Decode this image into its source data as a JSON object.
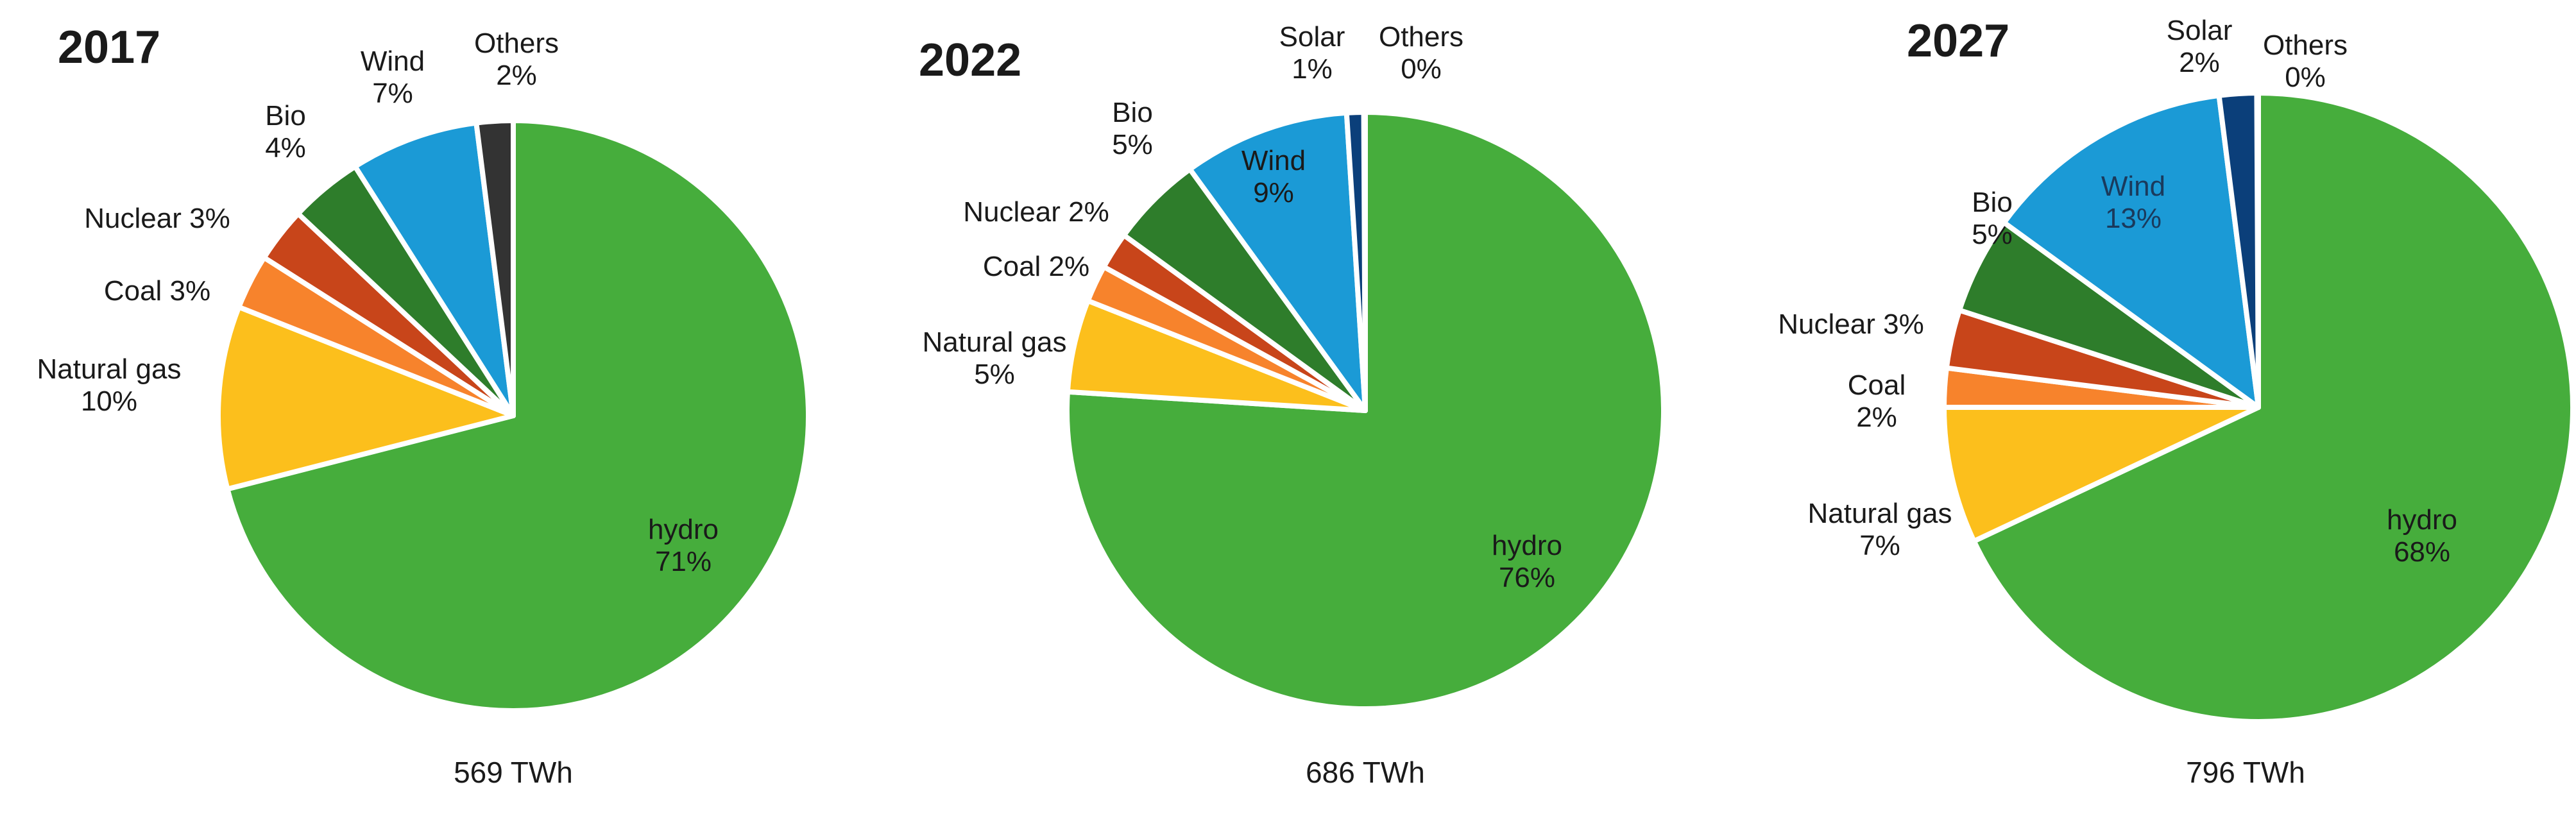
{
  "chart_data": [
    {
      "type": "pie",
      "title": "2017",
      "total_label": "569 TWh",
      "slices": [
        {
          "name": "hydro",
          "value": 71,
          "label": [
            "hydro",
            "71%"
          ],
          "color": "#46ad3c"
        },
        {
          "name": "Natural gas",
          "value": 10,
          "label": [
            "Natural gas",
            "10%"
          ],
          "color": "#fcbf1c"
        },
        {
          "name": "Coal",
          "value": 3,
          "label": [
            "Coal 3%"
          ],
          "color": "#f7832c"
        },
        {
          "name": "Nuclear",
          "value": 3,
          "label": [
            "Nuclear 3%"
          ],
          "color": "#c8451a"
        },
        {
          "name": "Bio",
          "value": 4,
          "label": [
            "Bio",
            "4%"
          ],
          "color": "#2e7d2b"
        },
        {
          "name": "Wind",
          "value": 7,
          "label": [
            "Wind",
            "7%"
          ],
          "color": "#1b9ad6"
        },
        {
          "name": "Others",
          "value": 2,
          "label": [
            "Others",
            "2%"
          ],
          "color": "#333333"
        }
      ]
    },
    {
      "type": "pie",
      "title": "2022",
      "total_label": "686 TWh",
      "slices": [
        {
          "name": "hydro",
          "value": 76,
          "label": [
            "hydro",
            "76%"
          ],
          "color": "#46ad3c"
        },
        {
          "name": "Natural gas",
          "value": 5,
          "label": [
            "Natural gas",
            "5%"
          ],
          "color": "#fcbf1c"
        },
        {
          "name": "Coal",
          "value": 2,
          "label": [
            "Coal 2%"
          ],
          "color": "#f7832c"
        },
        {
          "name": "Nuclear",
          "value": 2,
          "label": [
            "Nuclear 2%"
          ],
          "color": "#c8451a"
        },
        {
          "name": "Bio",
          "value": 5,
          "label": [
            "Bio",
            "5%"
          ],
          "color": "#2e7d2b"
        },
        {
          "name": "Wind",
          "value": 9,
          "label": [
            "Wind",
            "9%"
          ],
          "color": "#1b9ad6"
        },
        {
          "name": "Solar",
          "value": 1,
          "label": [
            "Solar",
            "1%"
          ],
          "color": "#0b3f7a"
        },
        {
          "name": "Others",
          "value": 0,
          "label": [
            "Others",
            "0%"
          ],
          "color": "#333333"
        }
      ]
    },
    {
      "type": "pie",
      "title": "2027",
      "total_label": "796 TWh",
      "slices": [
        {
          "name": "hydro",
          "value": 68,
          "label": [
            "hydro",
            "68%"
          ],
          "color": "#46ad3c"
        },
        {
          "name": "Natural gas",
          "value": 7,
          "label": [
            "Natural gas",
            "7%"
          ],
          "color": "#fcbf1c"
        },
        {
          "name": "Coal",
          "value": 2,
          "label": [
            "Coal",
            "2%"
          ],
          "color": "#f7832c"
        },
        {
          "name": "Nuclear",
          "value": 3,
          "label": [
            "Nuclear 3%"
          ],
          "color": "#c8451a"
        },
        {
          "name": "Bio",
          "value": 5,
          "label": [
            "Bio",
            "5%"
          ],
          "color": "#2e7d2b"
        },
        {
          "name": "Wind",
          "value": 13,
          "label": [
            "Wind",
            "13%"
          ],
          "color": "#1b9ad6"
        },
        {
          "name": "Solar",
          "value": 2,
          "label": [
            "Solar",
            "2%"
          ],
          "color": "#0b3f7a"
        },
        {
          "name": "Others",
          "value": 0,
          "label": [
            "Others",
            "0%"
          ],
          "color": "#333333"
        }
      ]
    }
  ]
}
